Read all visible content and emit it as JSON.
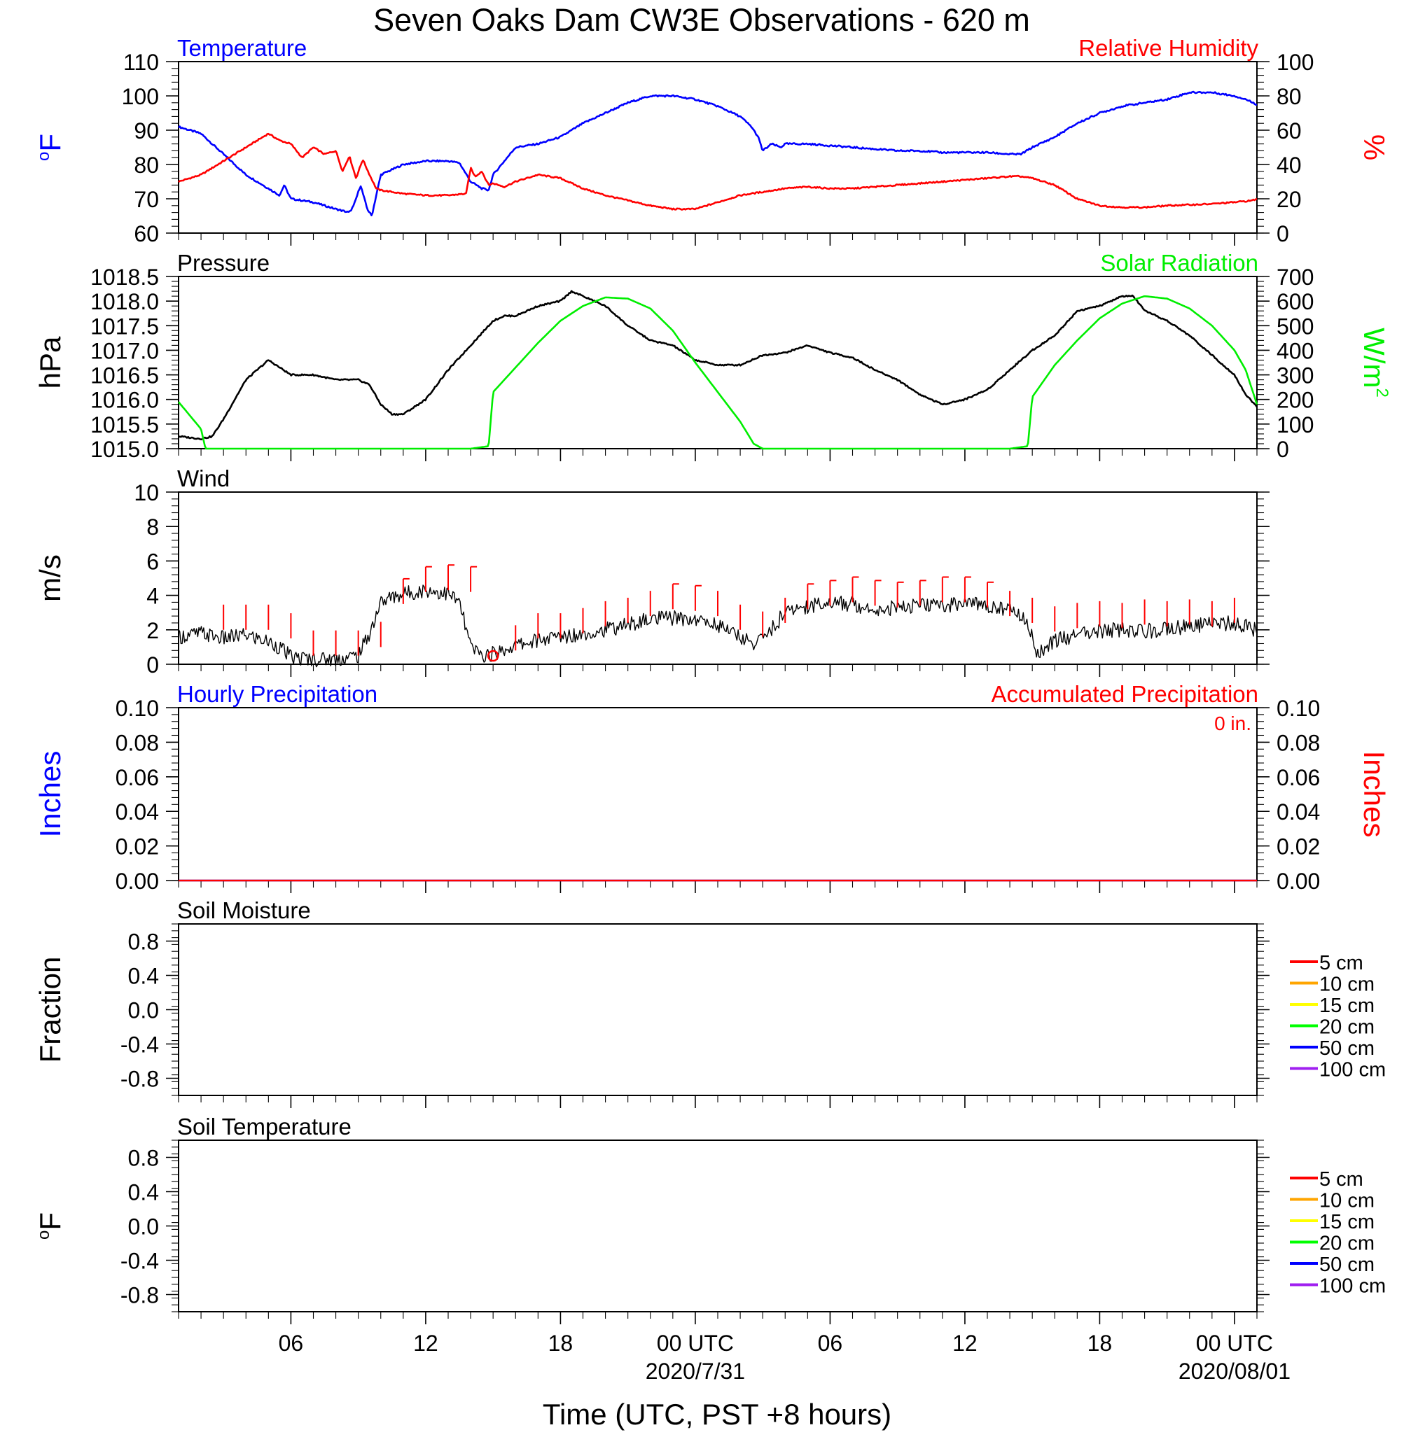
{
  "title": "Seven Oaks Dam CW3E Observations - 620 m",
  "xlabel": "Time (UTC, PST +8 hours)",
  "x_tick_labels": [
    {
      "hour": 6,
      "label": "06"
    },
    {
      "hour": 12,
      "label": "12"
    },
    {
      "hour": 18,
      "label": "18"
    },
    {
      "hour": 24,
      "label": "00 UTC",
      "sub": "2020/7/31"
    },
    {
      "hour": 30,
      "label": "06"
    },
    {
      "hour": 36,
      "label": "12"
    },
    {
      "hour": 42,
      "label": "18"
    },
    {
      "hour": 48,
      "label": "00 UTC",
      "sub": "2020/08/01"
    }
  ],
  "colors": {
    "temperature": "#0000ff",
    "relative_humidity": "#ff0000",
    "pressure": "#000000",
    "solar": "#00ee00",
    "wind": "#000000",
    "wind_barb": "#ff0000",
    "hourly_precip": "#0000ff",
    "accum_precip": "#ff0000",
    "soil": [
      "#ff0000",
      "#ffa500",
      "#ffff00",
      "#00ff00",
      "#0000ff",
      "#a020f0"
    ]
  },
  "chart_data": [
    {
      "id": "temp_rh",
      "type": "line",
      "title_left": "Temperature",
      "title_right": "Relative Humidity",
      "ylabel_left": "oF",
      "ylabel_right": "%",
      "xlim": [
        1,
        49
      ],
      "ylim_left": [
        60,
        110
      ],
      "ylim_right": [
        0,
        100
      ],
      "yticks_left": [
        "60",
        "70",
        "80",
        "90",
        "100",
        "110"
      ],
      "yticks_right": [
        "0",
        "20",
        "40",
        "60",
        "80",
        "100"
      ],
      "series": [
        {
          "name": "Temperature",
          "axis": "left",
          "x": [
            1,
            1.5,
            2,
            3,
            4,
            5,
            5.5,
            5.7,
            6,
            7,
            8,
            8.6,
            8.8,
            9.1,
            9.4,
            9.6,
            10,
            11,
            12,
            13,
            13.5,
            14,
            14.5,
            14.8,
            15,
            15.5,
            16,
            17,
            18,
            19,
            20,
            21,
            22,
            23,
            24,
            25,
            26,
            26.5,
            26.8,
            27,
            27.4,
            27.8,
            28,
            29,
            30,
            31,
            32,
            33,
            34,
            35,
            36,
            37,
            38,
            38.5,
            39,
            40,
            41,
            42,
            43,
            44,
            45,
            46,
            47,
            48,
            48.5,
            49
          ],
          "y": [
            91,
            90,
            89,
            83,
            77,
            73,
            71,
            74,
            70,
            69,
            67,
            66,
            68,
            74,
            67,
            65,
            77,
            80,
            81,
            81,
            80.5,
            75,
            73,
            72.5,
            77,
            81,
            85,
            86,
            88,
            92,
            95,
            98,
            100,
            100,
            99,
            97,
            94,
            91,
            88,
            84,
            86,
            85,
            86,
            86,
            85.5,
            85,
            84.5,
            84,
            84,
            83.5,
            83.5,
            83.5,
            83,
            83,
            85,
            88,
            92,
            95,
            97,
            98,
            99,
            101,
            101,
            100,
            99,
            97.5
          ]
        },
        {
          "name": "Relative Humidity",
          "axis": "right",
          "x": [
            1,
            1.5,
            2,
            3,
            4,
            5,
            5.5,
            6,
            6.5,
            7,
            7.5,
            8,
            8.3,
            8.6,
            8.9,
            9.2,
            9.5,
            9.8,
            10,
            11,
            12,
            13,
            13.8,
            14,
            14.2,
            14.5,
            14.8,
            15,
            15.5,
            16,
            17,
            18,
            19,
            20,
            21,
            22,
            23,
            24,
            25,
            26,
            27,
            28,
            29,
            30,
            31,
            32,
            33,
            34,
            35,
            36,
            37,
            38,
            38.5,
            39,
            40,
            41,
            42,
            43,
            44,
            45,
            46,
            47,
            48,
            48.8,
            49
          ],
          "y": [
            30,
            32,
            34,
            42,
            50,
            58,
            54,
            52,
            44,
            50,
            46,
            48,
            36,
            45,
            32,
            43,
            34,
            26,
            25,
            23,
            22,
            22,
            23,
            38,
            33,
            36,
            28,
            29,
            27,
            30,
            34,
            32,
            26,
            22,
            19,
            16,
            14,
            14,
            18,
            22,
            24,
            26,
            27,
            26,
            26,
            27,
            28,
            29,
            30,
            31,
            32,
            33,
            33,
            32,
            28,
            20,
            16,
            15,
            15,
            16,
            16.5,
            17,
            18,
            19,
            20
          ]
        }
      ]
    },
    {
      "id": "pressure_solar",
      "type": "line",
      "title_left": "Pressure",
      "title_right": "Solar Radiation",
      "ylabel_left": "hPa",
      "ylabel_right": "W/m2",
      "xlim": [
        1,
        49
      ],
      "ylim_left": [
        1015.0,
        1018.5
      ],
      "ylim_right": [
        0,
        700
      ],
      "yticks_left": [
        "1015.0",
        "1015.5",
        "1016.0",
        "1016.5",
        "1017.0",
        "1017.5",
        "1018.0",
        "1018.5"
      ],
      "yticks_right": [
        "0",
        "100",
        "200",
        "300",
        "400",
        "500",
        "600",
        "700"
      ],
      "series": [
        {
          "name": "Pressure",
          "axis": "left",
          "x": [
            1,
            2,
            2.5,
            3,
            4,
            5,
            6,
            7,
            8,
            9,
            9.5,
            10,
            10.5,
            11,
            12,
            13,
            14,
            15,
            15.5,
            16,
            17,
            18,
            18.5,
            19,
            20,
            21,
            22,
            23,
            24,
            25,
            26,
            27,
            28,
            29,
            30,
            31,
            32,
            33,
            34,
            35,
            36,
            37,
            38,
            39,
            40,
            41,
            42,
            43,
            43.5,
            44,
            45,
            46,
            47,
            48,
            48.5,
            49
          ],
          "y": [
            1015.25,
            1015.2,
            1015.25,
            1015.6,
            1016.4,
            1016.8,
            1016.5,
            1016.5,
            1016.4,
            1016.4,
            1016.3,
            1015.9,
            1015.7,
            1015.7,
            1016.0,
            1016.6,
            1017.1,
            1017.6,
            1017.7,
            1017.7,
            1017.9,
            1018.0,
            1018.2,
            1018.1,
            1017.9,
            1017.5,
            1017.2,
            1017.1,
            1016.8,
            1016.7,
            1016.7,
            1016.9,
            1016.95,
            1017.1,
            1016.95,
            1016.85,
            1016.6,
            1016.4,
            1016.1,
            1015.9,
            1016.0,
            1016.2,
            1016.6,
            1017.0,
            1017.3,
            1017.8,
            1017.9,
            1018.1,
            1018.1,
            1017.8,
            1017.6,
            1017.3,
            1016.9,
            1016.5,
            1016.1,
            1015.85
          ]
        },
        {
          "name": "Solar Radiation",
          "axis": "right",
          "x": [
            1,
            2,
            2.2,
            3,
            8,
            10,
            12,
            14,
            14.8,
            15,
            16,
            17,
            18,
            19,
            20,
            21,
            22,
            23,
            24,
            25,
            26,
            26.6,
            27,
            30,
            35,
            38,
            38.8,
            39,
            40,
            41,
            42,
            43,
            44,
            45,
            46,
            47,
            48,
            48.5,
            49
          ],
          "y": [
            190,
            80,
            0,
            0,
            0,
            0,
            0,
            0,
            10,
            230,
            330,
            430,
            520,
            580,
            615,
            610,
            570,
            480,
            350,
            230,
            110,
            20,
            0,
            0,
            0,
            0,
            10,
            210,
            340,
            440,
            530,
            590,
            620,
            610,
            570,
            500,
            400,
            320,
            180
          ]
        }
      ]
    },
    {
      "id": "wind",
      "type": "line",
      "title_left": "Wind",
      "ylabel_left": "m/s",
      "xlim": [
        1,
        49
      ],
      "ylim_left": [
        0,
        10
      ],
      "yticks_left": [
        "0",
        "2",
        "4",
        "6",
        "8",
        "10"
      ],
      "series": [
        {
          "name": "Wind",
          "axis": "left",
          "x": [
            1,
            2,
            3,
            4,
            5,
            5.5,
            6,
            7,
            8,
            9,
            9.5,
            10,
            10.5,
            11,
            12,
            13,
            13.5,
            14,
            14.5,
            15,
            16,
            17,
            18,
            19,
            20,
            21,
            22,
            23,
            24,
            25,
            26,
            26.5,
            27,
            27.5,
            28,
            29,
            30,
            31,
            32,
            33,
            34,
            35,
            36,
            37,
            38,
            38.5,
            39,
            39.2,
            40,
            41,
            42,
            43,
            44,
            45,
            46,
            47,
            48,
            49
          ],
          "y": [
            1.6,
            1.8,
            1.5,
            1.7,
            1.3,
            1.0,
            0.4,
            0.3,
            0.3,
            0.5,
            1.8,
            3.6,
            3.9,
            4.1,
            4.3,
            4.1,
            3.6,
            1.0,
            0.5,
            0.6,
            1.1,
            1.4,
            1.6,
            1.8,
            2.0,
            2.3,
            2.6,
            2.7,
            2.6,
            2.3,
            1.6,
            1.2,
            1.5,
            2.2,
            3.0,
            3.4,
            3.6,
            3.5,
            3.2,
            3.3,
            3.4,
            3.4,
            3.6,
            3.4,
            3.2,
            2.8,
            1.8,
            0.6,
            1.4,
            1.7,
            1.9,
            2.0,
            1.9,
            2.1,
            2.2,
            2.3,
            2.4,
            2.0
          ]
        },
        {
          "name": "Wind barbs",
          "axis": "left",
          "kind": "barb",
          "x": [
            3,
            4,
            5,
            6,
            7,
            8,
            9,
            10,
            11,
            12,
            13,
            14,
            16,
            17,
            18,
            19,
            20,
            21,
            22,
            23,
            24,
            25,
            26,
            27,
            28,
            29,
            30,
            31,
            32,
            33,
            34,
            35,
            36,
            37,
            38,
            39,
            40,
            41,
            42,
            43,
            44,
            45,
            46,
            47,
            48
          ],
          "y": [
            2,
            2,
            2,
            1.5,
            0.5,
            0.5,
            0.5,
            1,
            3.5,
            4.2,
            4.3,
            4.2,
            0.8,
            1.5,
            1.5,
            1.8,
            2.2,
            2.4,
            2.8,
            3.2,
            3.1,
            2.8,
            2.0,
            1.6,
            2.4,
            3.2,
            3.4,
            3.6,
            3.4,
            3.3,
            3.4,
            3.6,
            3.6,
            3.3,
            2.8,
            2.4,
            1.9,
            2.1,
            2.2,
            2.1,
            2.3,
            2.2,
            2.3,
            2.2,
            2.4
          ]
        }
      ],
      "calm_marker_hour": 15
    },
    {
      "id": "precip",
      "type": "line",
      "title_left": "Hourly Precipitation",
      "title_right": "Accumulated Precipitation",
      "annotation": "0 in.",
      "ylabel_left": "Inches",
      "ylabel_right": "Inches",
      "xlim": [
        1,
        49
      ],
      "ylim_left": [
        0,
        0.1
      ],
      "ylim_right": [
        0,
        0.1
      ],
      "yticks_left": [
        "0.00",
        "0.02",
        "0.04",
        "0.06",
        "0.08",
        "0.10"
      ],
      "yticks_right": [
        "0.00",
        "0.02",
        "0.04",
        "0.06",
        "0.08",
        "0.10"
      ],
      "series": [
        {
          "name": "Hourly Precipitation",
          "axis": "left",
          "x": [
            1,
            49
          ],
          "y": [
            0,
            0
          ]
        },
        {
          "name": "Accumulated Precipitation",
          "axis": "right",
          "x": [
            1,
            49
          ],
          "y": [
            0,
            0
          ]
        }
      ]
    },
    {
      "id": "soil_moisture",
      "type": "line",
      "title_left": "Soil Moisture",
      "ylabel_left": "Fraction",
      "xlim": [
        1,
        49
      ],
      "ylim_left": [
        -1,
        1
      ],
      "yticks_left": [
        "-0.8",
        "-0.4",
        "0.0",
        "0.4",
        "0.8"
      ],
      "legend": [
        "5 cm",
        "10 cm",
        "15 cm",
        "20 cm",
        "50 cm",
        "100 cm"
      ],
      "series": []
    },
    {
      "id": "soil_temp",
      "type": "line",
      "title_left": "Soil Temperature",
      "ylabel_left": "oF",
      "xlim": [
        1,
        49
      ],
      "ylim_left": [
        -1,
        1
      ],
      "yticks_left": [
        "-0.8",
        "-0.4",
        "0.0",
        "0.4",
        "0.8"
      ],
      "legend": [
        "5 cm",
        "10 cm",
        "15 cm",
        "20 cm",
        "50 cm",
        "100 cm"
      ],
      "series": []
    }
  ]
}
